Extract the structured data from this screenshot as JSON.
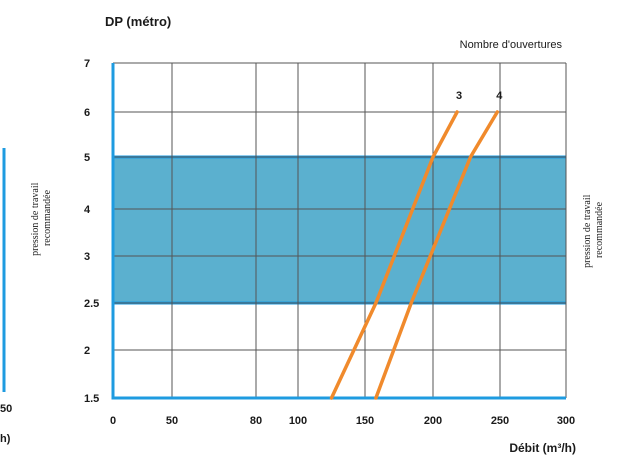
{
  "colors": {
    "grid": "#555555",
    "axis": "#1e9be0",
    "band_fill": "#5bb0cf",
    "band_edge": "#1e9be0",
    "series": "#f08a2c",
    "text": "#1a1a1a"
  },
  "chart_data": {
    "type": "line",
    "ylabel": "DP (métro)",
    "legend_title": "Nombre d'ouvertures",
    "xlabel": "Débit  (m³/h)",
    "band_label": "pression de travail recommandée",
    "recommended_band": [
      2.5,
      5
    ],
    "x_ticks": [
      {
        "value": 0,
        "label": "0"
      },
      {
        "value": 50,
        "label": "50"
      },
      {
        "value": 80,
        "label": "80"
      },
      {
        "value": 100,
        "label": "100"
      },
      {
        "value": 150,
        "label": "150"
      },
      {
        "value": 200,
        "label": "200"
      },
      {
        "value": 250,
        "label": "250"
      },
      {
        "value": 300,
        "label": "300"
      }
    ],
    "y_ticks": [
      {
        "value": 1.5,
        "label": "1.5"
      },
      {
        "value": 2,
        "label": "2"
      },
      {
        "value": 2.5,
        "label": "2.5"
      },
      {
        "value": 3,
        "label": "3"
      },
      {
        "value": 4,
        "label": "4"
      },
      {
        "value": 5,
        "label": "5"
      },
      {
        "value": 6,
        "label": "6"
      },
      {
        "value": 7,
        "label": "7"
      }
    ],
    "grid": true,
    "series": [
      {
        "name": "3",
        "points": [
          [
            125,
            1.5
          ],
          [
            158,
            2.5
          ],
          [
            200,
            5
          ],
          [
            218,
            6
          ]
        ]
      },
      {
        "name": "4",
        "points": [
          [
            158,
            1.5
          ],
          [
            184,
            2.5
          ],
          [
            228,
            5
          ],
          [
            248,
            6
          ]
        ]
      }
    ]
  },
  "left_fragment": {
    "band_label": "pression de travail recommandée",
    "x_tick": "50",
    "axis_unit": "h)"
  }
}
